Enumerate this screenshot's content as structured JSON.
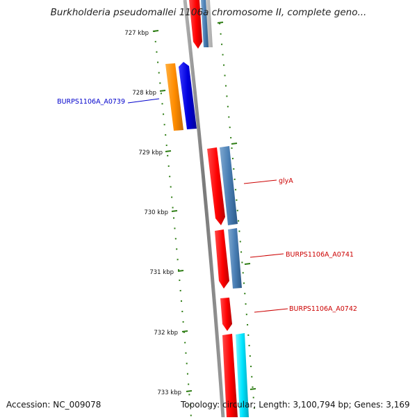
{
  "map": {
    "title": "Burkholderia pseudomallei 1106a chromosome II, complete geno...",
    "accession": "Accession: NC_009078",
    "summary": "Topology: circular; Length: 3,100,794 bp; Genes: 3,169",
    "backbone_color": "#8a8a8a",
    "tick_color": "#2e7d14",
    "ticks": [
      {
        "label": "727 kbp"
      },
      {
        "label": "728 kbp"
      },
      {
        "label": "729 kbp"
      },
      {
        "label": "730 kbp"
      },
      {
        "label": "731 kbp"
      },
      {
        "label": "732 kbp"
      },
      {
        "label": "733 kbp"
      }
    ],
    "gene_labels": [
      {
        "text": "BURPS1106A_A0739",
        "color": "#0000cc"
      },
      {
        "text": "glyA",
        "color": "#cc0000"
      },
      {
        "text": "BURPS1106A_A0741",
        "color": "#cc0000"
      },
      {
        "text": "BURPS1106A_A0742",
        "color": "#cc0000"
      }
    ],
    "feature_colors": {
      "cds": "#ff0000",
      "gene_blue": "#4a7fb5",
      "orange": "#ff8c00",
      "dark_blue": "#0000dd",
      "cyan": "#00e5ff",
      "light_blue": "#a8c8e8",
      "grey": "#c8c8c8"
    }
  }
}
